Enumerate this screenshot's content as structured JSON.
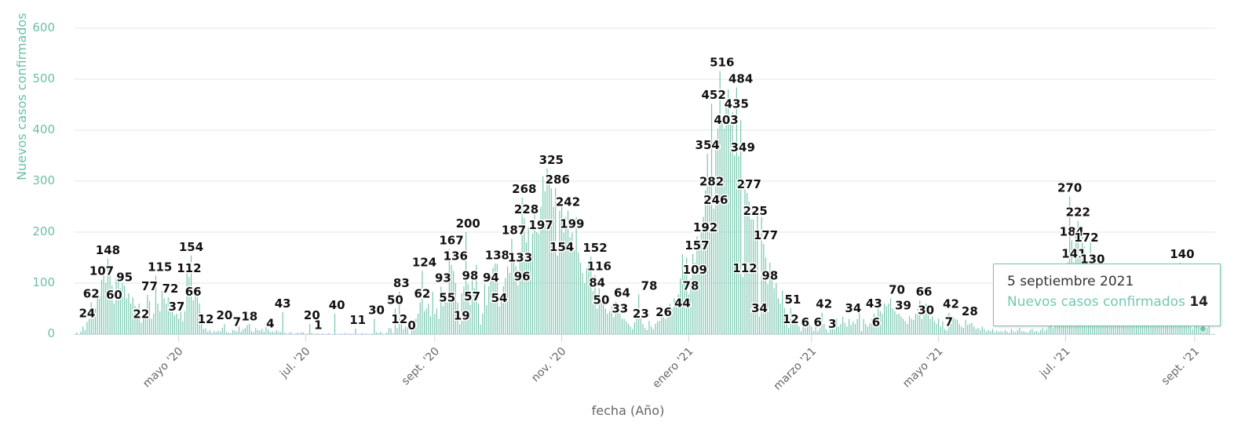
{
  "chart_data": {
    "type": "bar",
    "title": "",
    "xlabel": "fecha (Año)",
    "ylabel": "Nuevos casos confirmados",
    "ylim": [
      0,
      600
    ],
    "yticks": [
      "0",
      "100",
      "200",
      "300",
      "400",
      "500",
      "600"
    ],
    "x_domain": [
      "2020-03-12",
      "2021-09-09"
    ],
    "grid": true,
    "xticks": [
      {
        "date": "2020-05-01",
        "label": "mayo '20"
      },
      {
        "date": "2020-07-01",
        "label": "jul. '20"
      },
      {
        "date": "2020-09-01",
        "label": "sept. '20"
      },
      {
        "date": "2020-11-01",
        "label": "nov. '20"
      },
      {
        "date": "2021-01-01",
        "label": "enero '21"
      },
      {
        "date": "2021-03-01",
        "label": "marzo '21"
      },
      {
        "date": "2021-05-01",
        "label": "mayo '21"
      },
      {
        "date": "2021-07-01",
        "label": "jul. '21"
      },
      {
        "date": "2021-09-01",
        "label": "sept. '21"
      }
    ],
    "color": "#76c7ae",
    "series": [
      {
        "name": "Nuevos casos confirmados",
        "start_date": "2020-03-12",
        "interval": "day",
        "values": [
          0,
          3,
          0,
          5,
          15,
          8,
          24,
          30,
          62,
          40,
          50,
          70,
          75,
          107,
          120,
          100,
          148,
          118,
          95,
          60,
          110,
          120,
          90,
          100,
          95,
          70,
          80,
          60,
          72,
          55,
          45,
          60,
          22,
          40,
          50,
          77,
          65,
          30,
          40,
          115,
          60,
          45,
          85,
          70,
          60,
          72,
          45,
          50,
          37,
          40,
          30,
          55,
          25,
          45,
          120,
          112,
          154,
          66,
          80,
          75,
          60,
          40,
          10,
          12,
          5,
          8,
          3,
          6,
          4,
          7,
          5,
          12,
          20,
          4,
          3,
          2,
          8,
          7,
          5,
          15,
          5,
          10,
          12,
          18,
          20,
          6,
          4,
          12,
          8,
          7,
          10,
          5,
          14,
          9,
          4,
          6,
          3,
          8,
          5,
          4,
          43,
          3,
          1,
          2,
          4,
          0,
          1,
          3,
          1,
          4,
          3,
          0,
          1,
          20,
          2,
          0,
          1,
          1,
          0,
          1,
          0,
          0,
          2,
          0,
          0,
          40,
          0,
          0,
          1,
          0,
          2,
          0,
          1,
          0,
          0,
          11,
          0,
          0,
          2,
          0,
          1,
          0,
          0,
          1,
          30,
          3,
          2,
          5,
          1,
          0,
          3,
          12,
          11,
          2,
          50,
          12,
          83,
          20,
          10,
          15,
          20,
          0,
          25,
          28,
          30,
          40,
          62,
          124,
          45,
          50,
          60,
          35,
          83,
          40,
          50,
          30,
          93,
          55,
          70,
          62,
          167,
          136,
          124,
          100,
          62,
          19,
          80,
          93,
          200,
          98,
          57,
          110,
          90,
          136,
          60,
          19,
          40,
          98,
          57,
          94,
          110,
          130,
          138,
          138,
          54,
          75,
          94,
          110,
          133,
          120,
          187,
          140,
          133,
          96,
          150,
          268,
          228,
          180,
          210,
          150,
          197,
          240,
          200,
          197,
          250,
          310,
          280,
          325,
          300,
          286,
          250,
          286,
          154,
          242,
          260,
          199,
          230,
          242,
          190,
          199,
          170,
          230,
          160,
          140,
          120,
          100,
          130,
          140,
          152,
          84,
          116,
          50,
          90,
          70,
          60,
          50,
          40,
          45,
          55,
          33,
          64,
          55,
          40,
          30,
          30,
          25,
          20,
          15,
          10,
          23,
          40,
          78,
          35,
          20,
          12,
          8,
          26,
          15,
          10,
          20,
          25,
          26,
          44,
          35,
          30,
          44,
          60,
          50,
          70,
          60,
          78,
          109,
          157,
          120,
          150,
          78,
          109,
          157,
          140,
          192,
          170,
          200,
          230,
          282,
          354,
          300,
          452,
          246,
          380,
          403,
          516,
          420,
          403,
          460,
          480,
          420,
          435,
          350,
          484,
          349,
          420,
          112,
          300,
          277,
          260,
          225,
          225,
          200,
          240,
          34,
          230,
          177,
          150,
          98,
          140,
          120,
          90,
          100,
          70,
          60,
          85,
          51,
          40,
          12,
          51,
          30,
          25,
          20,
          15,
          6,
          18,
          12,
          30,
          20,
          15,
          6,
          25,
          6,
          12,
          42,
          20,
          10,
          3,
          18,
          25,
          10,
          30,
          15,
          20,
          34,
          22,
          15,
          30,
          18,
          25,
          20,
          30,
          43,
          6,
          30,
          20,
          15,
          22,
          30,
          40,
          35,
          50,
          45,
          40,
          60,
          55,
          60,
          70,
          50,
          45,
          39,
          40,
          35,
          30,
          25,
          20,
          35,
          30,
          28,
          40,
          50,
          66,
          30,
          45,
          60,
          40,
          30,
          35,
          25,
          20,
          30,
          15,
          25,
          10,
          7,
          42,
          20,
          35,
          30,
          28,
          20,
          15,
          12,
          28,
          18,
          20,
          22,
          15,
          10,
          12,
          8,
          15,
          10,
          5,
          8,
          6,
          10,
          4,
          7,
          5,
          6,
          4,
          8,
          5,
          3,
          10,
          6,
          4,
          8,
          12,
          5,
          6,
          4,
          3,
          8,
          10,
          5,
          6,
          4,
          8,
          12,
          6,
          10,
          15,
          20,
          12,
          18,
          25,
          30,
          40,
          60,
          80,
          141,
          270,
          184,
          141,
          195,
          222,
          150,
          200,
          172,
          160,
          130,
          184,
          120,
          110,
          100,
          90,
          85,
          80,
          75,
          70,
          65,
          60,
          55,
          50,
          50,
          48,
          45,
          45,
          40,
          45,
          50,
          55,
          60,
          50,
          45,
          40,
          45,
          50,
          55,
          50,
          45,
          40,
          35,
          40,
          45,
          40,
          35,
          30,
          35,
          30,
          25,
          30,
          28,
          25,
          140,
          25,
          20,
          25,
          20,
          15,
          10,
          15,
          20,
          15,
          14,
          10,
          14,
          12,
          15
        ]
      }
    ],
    "data_labels": [
      {
        "date": "2020-03-18",
        "value": 24
      },
      {
        "date": "2020-03-20",
        "value": 62
      },
      {
        "date": "2020-03-25",
        "value": 107
      },
      {
        "date": "2020-03-28",
        "value": 148
      },
      {
        "date": "2020-03-31",
        "value": 60
      },
      {
        "date": "2020-04-05",
        "value": 95
      },
      {
        "date": "2020-04-13",
        "value": 22
      },
      {
        "date": "2020-04-17",
        "value": 77
      },
      {
        "date": "2020-04-22",
        "value": 115
      },
      {
        "date": "2020-04-27",
        "value": 72
      },
      {
        "date": "2020-04-30",
        "value": 37
      },
      {
        "date": "2020-05-06",
        "value": 112
      },
      {
        "date": "2020-05-07",
        "value": 154
      },
      {
        "date": "2020-05-08",
        "value": 66
      },
      {
        "date": "2020-05-14",
        "value": 12
      },
      {
        "date": "2020-05-23",
        "value": 20
      },
      {
        "date": "2020-05-29",
        "value": 7
      },
      {
        "date": "2020-06-04",
        "value": 18
      },
      {
        "date": "2020-06-14",
        "value": 4
      },
      {
        "date": "2020-06-20",
        "value": 43
      },
      {
        "date": "2020-07-04",
        "value": 20
      },
      {
        "date": "2020-07-07",
        "value": 1
      },
      {
        "date": "2020-07-16",
        "value": 40
      },
      {
        "date": "2020-07-26",
        "value": 11
      },
      {
        "date": "2020-08-04",
        "value": 30
      },
      {
        "date": "2020-08-13",
        "value": 50
      },
      {
        "date": "2020-08-15",
        "value": 12
      },
      {
        "date": "2020-08-16",
        "value": 83
      },
      {
        "date": "2020-08-21",
        "value": 0
      },
      {
        "date": "2020-08-26",
        "value": 62
      },
      {
        "date": "2020-08-27",
        "value": 124
      },
      {
        "date": "2020-09-05",
        "value": 93
      },
      {
        "date": "2020-09-07",
        "value": 55
      },
      {
        "date": "2020-09-09",
        "value": 167
      },
      {
        "date": "2020-09-11",
        "value": 136
      },
      {
        "date": "2020-09-14",
        "value": 19
      },
      {
        "date": "2020-09-17",
        "value": 200
      },
      {
        "date": "2020-09-18",
        "value": 98
      },
      {
        "date": "2020-09-19",
        "value": 57
      },
      {
        "date": "2020-09-28",
        "value": 94
      },
      {
        "date": "2020-10-01",
        "value": 138
      },
      {
        "date": "2020-10-02",
        "value": 54
      },
      {
        "date": "2020-10-09",
        "value": 187
      },
      {
        "date": "2020-10-12",
        "value": 133
      },
      {
        "date": "2020-10-13",
        "value": 96
      },
      {
        "date": "2020-10-14",
        "value": 268
      },
      {
        "date": "2020-10-15",
        "value": 228
      },
      {
        "date": "2020-10-22",
        "value": 197
      },
      {
        "date": "2020-10-27",
        "value": 325
      },
      {
        "date": "2020-10-30",
        "value": 286
      },
      {
        "date": "2020-11-01",
        "value": 154
      },
      {
        "date": "2020-11-04",
        "value": 242
      },
      {
        "date": "2020-11-06",
        "value": 199
      },
      {
        "date": "2020-11-17",
        "value": 152
      },
      {
        "date": "2020-11-19",
        "value": 116
      },
      {
        "date": "2020-11-18",
        "value": 84
      },
      {
        "date": "2020-11-20",
        "value": 50
      },
      {
        "date": "2020-11-30",
        "value": 64
      },
      {
        "date": "2020-11-29",
        "value": 33
      },
      {
        "date": "2020-12-09",
        "value": 23
      },
      {
        "date": "2020-12-13",
        "value": 78
      },
      {
        "date": "2020-12-20",
        "value": 26
      },
      {
        "date": "2020-12-29",
        "value": 44
      },
      {
        "date": "2021-01-02",
        "value": 78
      },
      {
        "date": "2021-01-04",
        "value": 109
      },
      {
        "date": "2021-01-05",
        "value": 157
      },
      {
        "date": "2021-01-09",
        "value": 192
      },
      {
        "date": "2021-01-10",
        "value": 354
      },
      {
        "date": "2021-01-12",
        "value": 282
      },
      {
        "date": "2021-01-13",
        "value": 452
      },
      {
        "date": "2021-01-14",
        "value": 246
      },
      {
        "date": "2021-01-17",
        "value": 516
      },
      {
        "date": "2021-01-19",
        "value": 403
      },
      {
        "date": "2021-01-24",
        "value": 435
      },
      {
        "date": "2021-01-26",
        "value": 484
      },
      {
        "date": "2021-01-27",
        "value": 349
      },
      {
        "date": "2021-01-28",
        "value": 112
      },
      {
        "date": "2021-01-30",
        "value": 277
      },
      {
        "date": "2021-02-02",
        "value": 225
      },
      {
        "date": "2021-02-04",
        "value": 34
      },
      {
        "date": "2021-02-07",
        "value": 177
      },
      {
        "date": "2021-02-09",
        "value": 98
      },
      {
        "date": "2021-02-19",
        "value": 12
      },
      {
        "date": "2021-02-20",
        "value": 51
      },
      {
        "date": "2021-02-26",
        "value": 6
      },
      {
        "date": "2021-03-04",
        "value": 6
      },
      {
        "date": "2021-03-07",
        "value": 42
      },
      {
        "date": "2021-03-11",
        "value": 3
      },
      {
        "date": "2021-03-21",
        "value": 34
      },
      {
        "date": "2021-03-31",
        "value": 43
      },
      {
        "date": "2021-04-01",
        "value": 6
      },
      {
        "date": "2021-04-11",
        "value": 70
      },
      {
        "date": "2021-04-14",
        "value": 39
      },
      {
        "date": "2021-04-24",
        "value": 66
      },
      {
        "date": "2021-04-25",
        "value": 30
      },
      {
        "date": "2021-05-06",
        "value": 7
      },
      {
        "date": "2021-05-07",
        "value": 42
      },
      {
        "date": "2021-05-16",
        "value": 28
      },
      {
        "date": "2021-07-03",
        "value": 270
      },
      {
        "date": "2021-07-04",
        "value": 184
      },
      {
        "date": "2021-07-05",
        "value": 141
      },
      {
        "date": "2021-07-07",
        "value": 222
      },
      {
        "date": "2021-07-11",
        "value": 172
      },
      {
        "date": "2021-07-14",
        "value": 130
      },
      {
        "date": "2021-08-26",
        "value": 140
      }
    ]
  },
  "tooltip": {
    "date": "5 septiembre 2021",
    "series_name": "Nuevos casos confirmados",
    "value": "14",
    "point_date": "2021-09-05"
  }
}
